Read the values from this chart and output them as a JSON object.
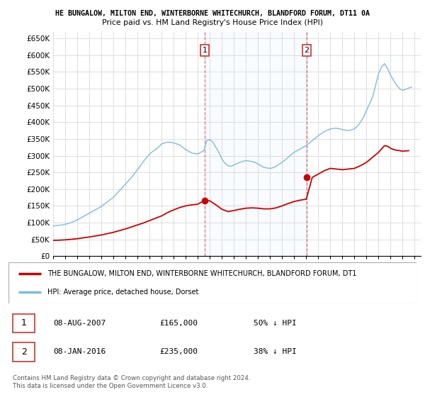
{
  "title_line1": "HE BUNGALOW, MILTON END, WINTERBORNE WHITECHURCH, BLANDFORD FORUM, DT11 0A",
  "title_line2": "Price paid vs. HM Land Registry's House Price Index (HPI)",
  "ylim": [
    0,
    670000
  ],
  "yticks": [
    0,
    50000,
    100000,
    150000,
    200000,
    250000,
    300000,
    350000,
    400000,
    450000,
    500000,
    550000,
    600000,
    650000
  ],
  "ytick_labels": [
    "£0",
    "£50K",
    "£100K",
    "£150K",
    "£200K",
    "£250K",
    "£300K",
    "£350K",
    "£400K",
    "£450K",
    "£500K",
    "£550K",
    "£600K",
    "£650K"
  ],
  "background_color": "#ffffff",
  "grid_color": "#dddddd",
  "hpi_color": "#7bbce0",
  "hpi_fill_color": "#ddeeff",
  "property_color": "#cc0000",
  "vline_color": "#dd6666",
  "transaction1_date": 2007.58,
  "transaction1_price": 165000,
  "transaction1_label": "1",
  "transaction2_date": 2016.03,
  "transaction2_price": 235000,
  "transaction2_label": "2",
  "legend_property_label": "THE BUNGALOW, MILTON END, WINTERBORNE WHITECHURCH, BLANDFORD FORUM, DT1",
  "legend_hpi_label": "HPI: Average price, detached house, Dorset",
  "note1_label": "1",
  "note1_date": "08-AUG-2007",
  "note1_price": "£165,000",
  "note1_hpi": "50% ↓ HPI",
  "note2_label": "2",
  "note2_date": "08-JAN-2016",
  "note2_price": "£235,000",
  "note2_hpi": "38% ↓ HPI",
  "footer": "Contains HM Land Registry data © Crown copyright and database right 2024.\nThis data is licensed under the Open Government Licence v3.0.",
  "hpi_x": [
    1995.0,
    1995.25,
    1995.5,
    1995.75,
    1996.0,
    1996.25,
    1996.5,
    1996.75,
    1997.0,
    1997.25,
    1997.5,
    1997.75,
    1998.0,
    1998.25,
    1998.5,
    1998.75,
    1999.0,
    1999.25,
    1999.5,
    1999.75,
    2000.0,
    2000.25,
    2000.5,
    2000.75,
    2001.0,
    2001.25,
    2001.5,
    2001.75,
    2002.0,
    2002.25,
    2002.5,
    2002.75,
    2003.0,
    2003.25,
    2003.5,
    2003.75,
    2004.0,
    2004.25,
    2004.5,
    2004.75,
    2005.0,
    2005.25,
    2005.5,
    2005.75,
    2006.0,
    2006.25,
    2006.5,
    2006.75,
    2007.0,
    2007.25,
    2007.5,
    2007.75,
    2008.0,
    2008.25,
    2008.5,
    2008.75,
    2009.0,
    2009.25,
    2009.5,
    2009.75,
    2010.0,
    2010.25,
    2010.5,
    2010.75,
    2011.0,
    2011.25,
    2011.5,
    2011.75,
    2012.0,
    2012.25,
    2012.5,
    2012.75,
    2013.0,
    2013.25,
    2013.5,
    2013.75,
    2014.0,
    2014.25,
    2014.5,
    2014.75,
    2015.0,
    2015.25,
    2015.5,
    2015.75,
    2016.0,
    2016.25,
    2016.5,
    2016.75,
    2017.0,
    2017.25,
    2017.5,
    2017.75,
    2018.0,
    2018.25,
    2018.5,
    2018.75,
    2019.0,
    2019.25,
    2019.5,
    2019.75,
    2020.0,
    2020.25,
    2020.5,
    2020.75,
    2021.0,
    2021.25,
    2021.5,
    2021.75,
    2022.0,
    2022.25,
    2022.5,
    2022.75,
    2023.0,
    2023.25,
    2023.5,
    2023.75,
    2024.0,
    2024.25,
    2024.5,
    2024.75
  ],
  "hpi_y": [
    90000,
    91000,
    92000,
    93000,
    95000,
    97000,
    100000,
    104000,
    108000,
    113000,
    118000,
    123000,
    128000,
    133000,
    138000,
    143000,
    148000,
    155000,
    162000,
    169000,
    175000,
    185000,
    195000,
    205000,
    215000,
    225000,
    235000,
    246000,
    258000,
    270000,
    283000,
    294000,
    305000,
    312000,
    318000,
    326000,
    335000,
    338000,
    340000,
    340000,
    338000,
    335000,
    332000,
    325000,
    318000,
    313000,
    308000,
    306000,
    305000,
    310000,
    315000,
    345000,
    348000,
    340000,
    325000,
    310000,
    290000,
    278000,
    270000,
    268000,
    272000,
    276000,
    280000,
    283000,
    285000,
    284000,
    282000,
    280000,
    275000,
    270000,
    265000,
    263000,
    262000,
    264000,
    268000,
    274000,
    280000,
    287000,
    295000,
    303000,
    310000,
    315000,
    320000,
    325000,
    330000,
    337000,
    345000,
    352000,
    360000,
    366000,
    372000,
    376000,
    380000,
    381000,
    382000,
    380000,
    378000,
    376000,
    375000,
    377000,
    380000,
    388000,
    400000,
    415000,
    435000,
    455000,
    475000,
    510000,
    545000,
    565000,
    575000,
    560000,
    540000,
    525000,
    510000,
    500000,
    495000,
    498000,
    502000,
    505000
  ],
  "property_x": [
    1995.0,
    1995.5,
    1996.0,
    1996.5,
    1997.0,
    1997.5,
    1998.0,
    1998.5,
    1999.0,
    1999.5,
    2000.0,
    2000.5,
    2001.0,
    2001.5,
    2002.0,
    2002.5,
    2003.0,
    2003.5,
    2004.0,
    2004.5,
    2005.0,
    2005.5,
    2006.0,
    2006.5,
    2007.0,
    2007.5,
    2008.0,
    2008.5,
    2009.0,
    2009.5,
    2010.0,
    2010.5,
    2011.0,
    2011.5,
    2012.0,
    2012.5,
    2013.0,
    2013.5,
    2014.0,
    2014.5,
    2015.0,
    2015.5,
    2016.0,
    2016.5,
    2017.0,
    2017.5,
    2018.0,
    2018.5,
    2019.0,
    2019.5,
    2020.0,
    2020.5,
    2021.0,
    2021.5,
    2022.0,
    2022.25,
    2022.5,
    2022.75,
    2023.0,
    2023.25,
    2023.5,
    2023.75,
    2024.0,
    2024.5
  ],
  "property_y": [
    47000,
    47500,
    48500,
    50000,
    52000,
    54500,
    57000,
    60000,
    63000,
    67000,
    71000,
    76000,
    81000,
    87000,
    93000,
    99000,
    106000,
    113000,
    120000,
    130000,
    138000,
    145000,
    150000,
    153000,
    155000,
    165000,
    165000,
    153000,
    140000,
    133000,
    136000,
    140000,
    143000,
    144000,
    143000,
    141000,
    141000,
    144000,
    150000,
    157000,
    163000,
    167000,
    170000,
    235000,
    245000,
    255000,
    262000,
    260000,
    258000,
    260000,
    262000,
    270000,
    280000,
    295000,
    310000,
    320000,
    330000,
    328000,
    322000,
    318000,
    316000,
    315000,
    313000,
    315000
  ]
}
